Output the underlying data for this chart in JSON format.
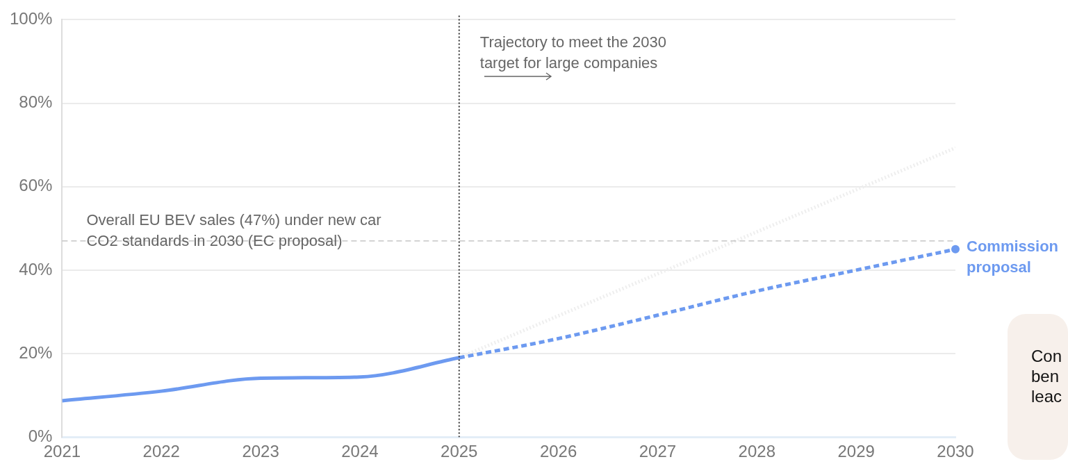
{
  "chart_data": {
    "type": "line",
    "xlim": [
      2021,
      2030
    ],
    "xticks": [
      2021,
      2022,
      2023,
      2024,
      2025,
      2026,
      2027,
      2028,
      2029,
      2030
    ],
    "ylim": [
      0,
      100
    ],
    "yticks": [
      {
        "value": 0,
        "label": "0%"
      },
      {
        "value": 20,
        "label": "20%"
      },
      {
        "value": 40,
        "label": "40%"
      },
      {
        "value": 60,
        "label": "60%"
      },
      {
        "value": 80,
        "label": "80%"
      },
      {
        "value": 100,
        "label": "100%"
      }
    ],
    "grid": "y",
    "legend": false,
    "series": [
      {
        "color": "#6d9af0",
        "line_style": "solid",
        "x": [
          2021,
          2022,
          2023,
          2024,
          2025
        ],
        "values": [
          8.7,
          11,
          14.1,
          14.4,
          19
        ]
      },
      {
        "name": "Commission proposal",
        "color": "#6d9af0",
        "line_style": "dashed",
        "x": [
          2025,
          2026,
          2027,
          2028,
          2029,
          2030
        ],
        "values": [
          19,
          23.6,
          29.2,
          35,
          40,
          45
        ]
      },
      {
        "color": "#eeeeee",
        "line_style": "dotted",
        "x": [
          2025,
          2030
        ],
        "values": [
          19,
          69.3
        ]
      }
    ],
    "ref_lines": [
      {
        "axis": "y",
        "value": 47,
        "label": "Overall EU BEV sales (47%) under new car CO2 standards in 2030 (EC proposal)",
        "color": "#bbbbbb",
        "line_style": "dashed"
      },
      {
        "axis": "x",
        "value": 2025,
        "label": "Trajectory to meet the 2030 target for large companies",
        "color": "#333333",
        "line_style": "dotted"
      }
    ],
    "annotations": [
      "Con ben leac"
    ]
  }
}
